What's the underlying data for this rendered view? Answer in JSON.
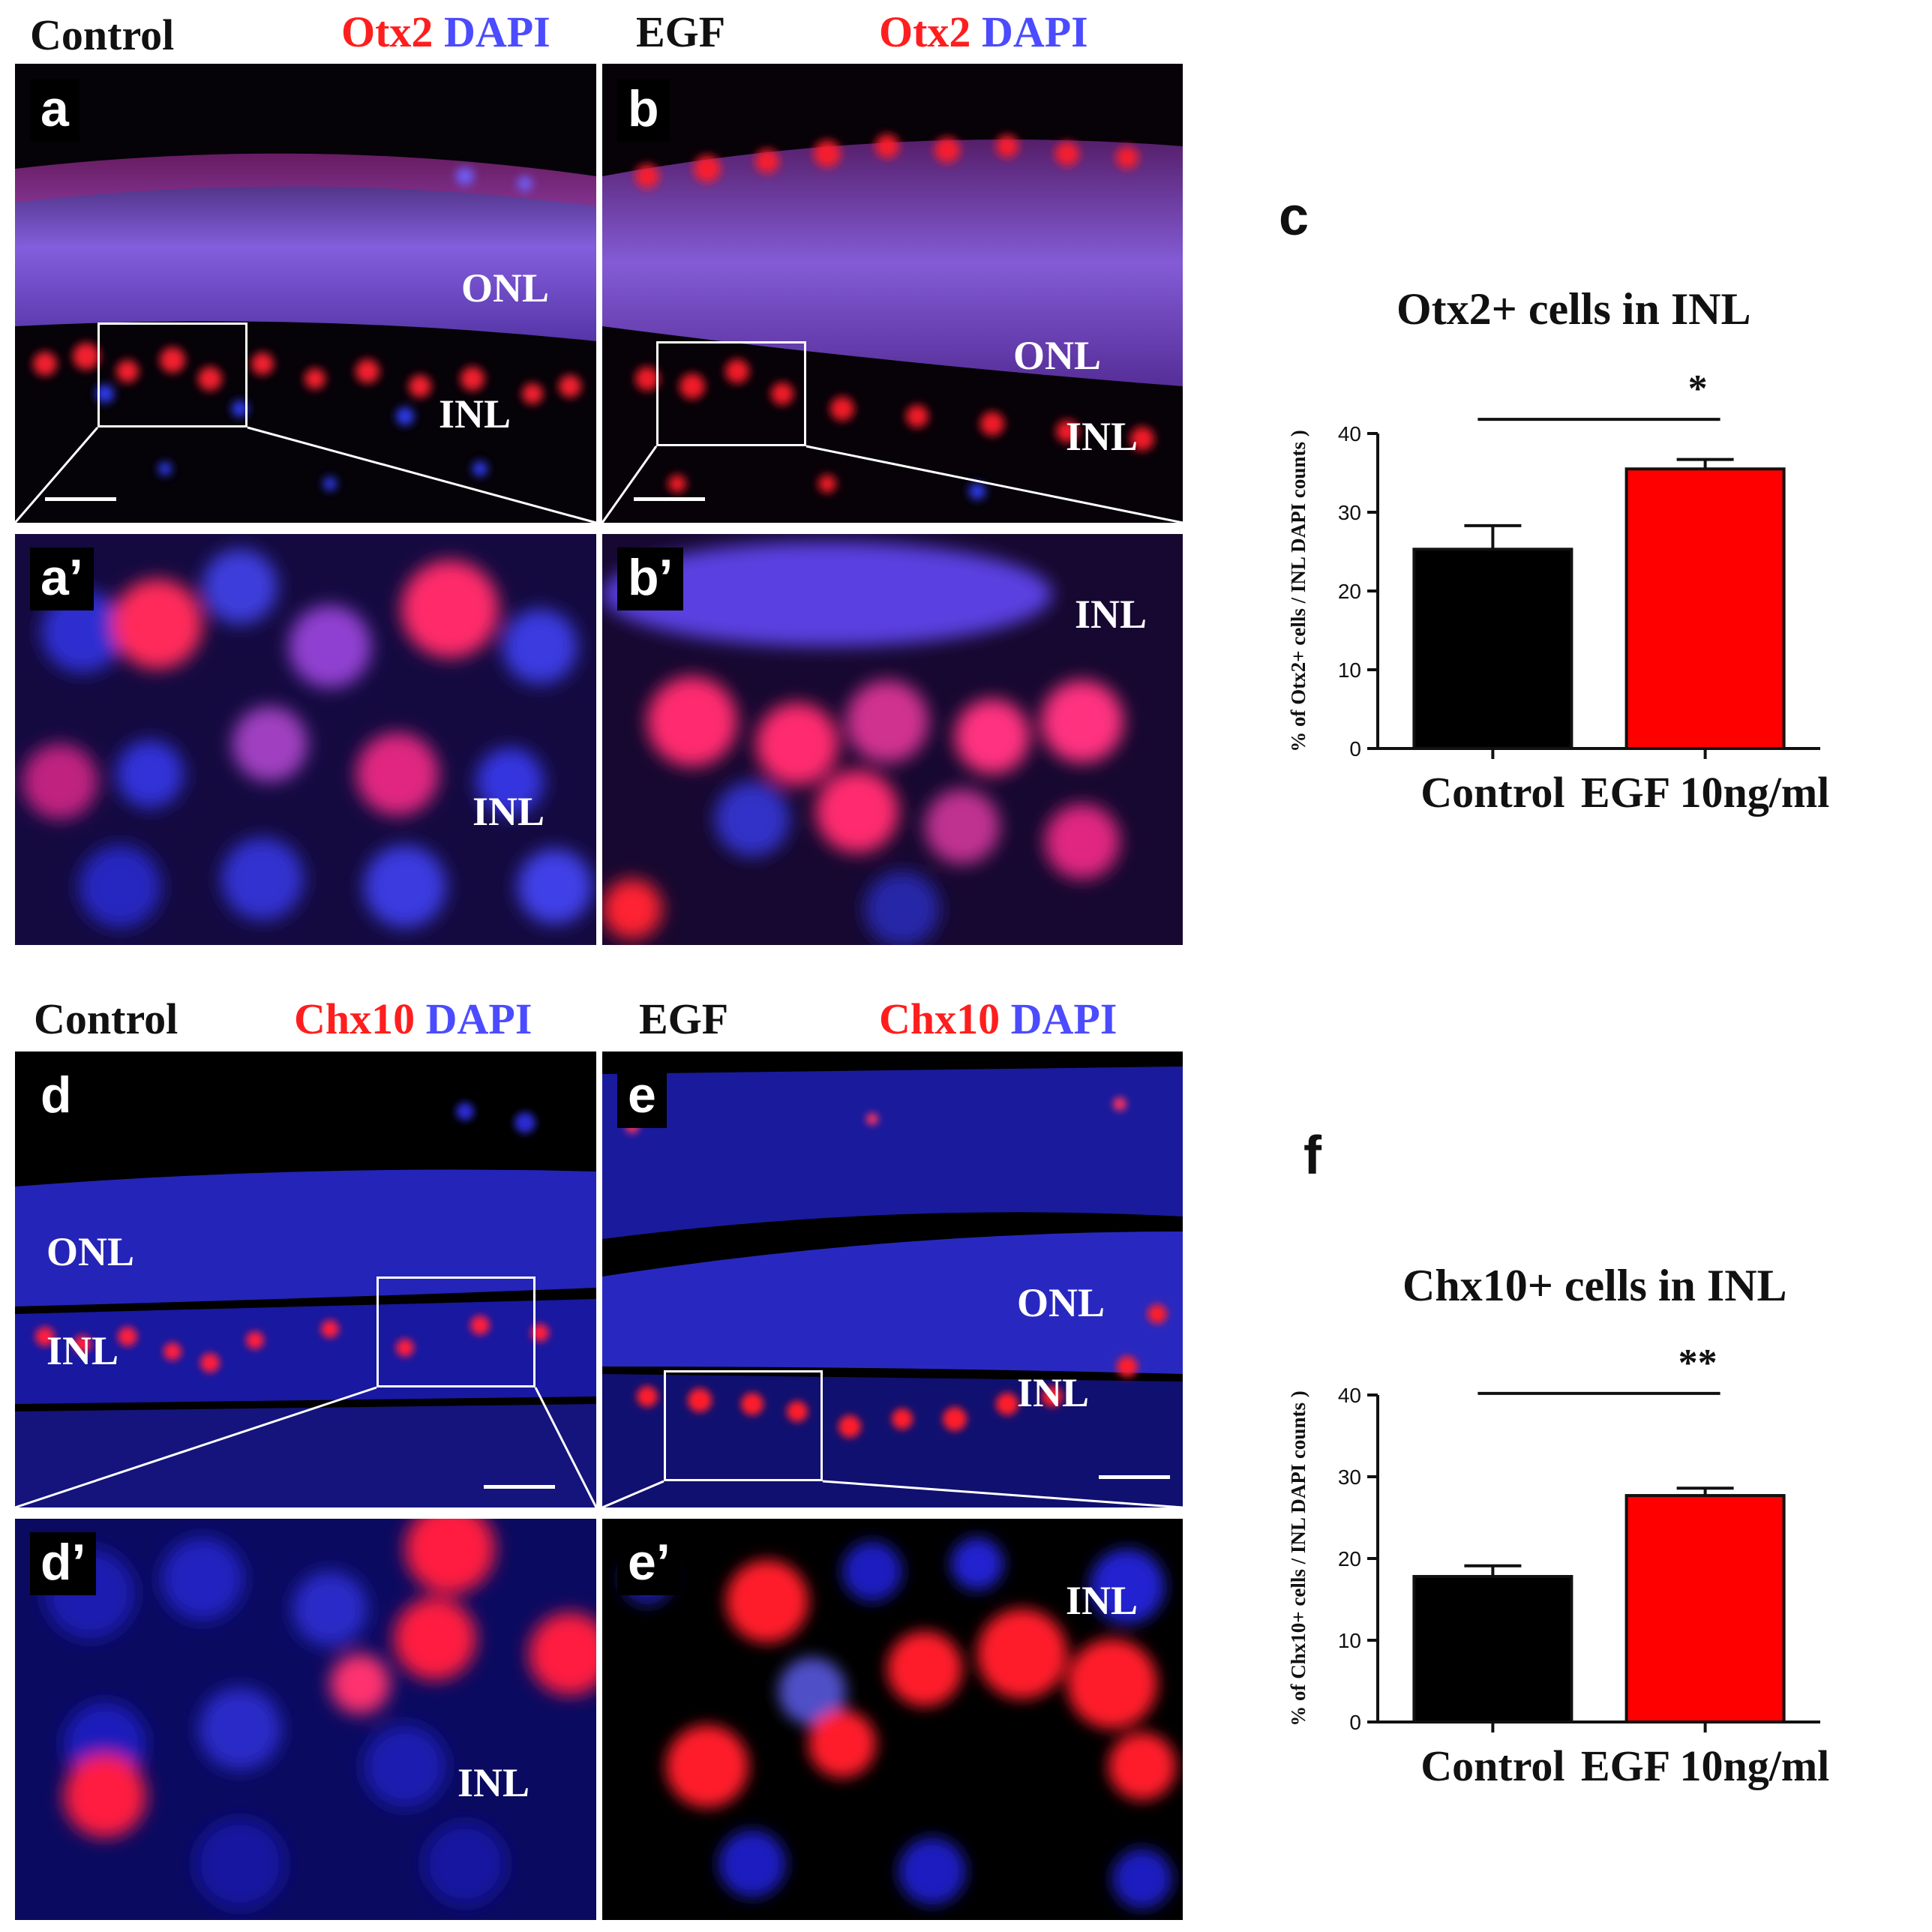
{
  "top": {
    "control_header": {
      "condition": "Control",
      "marker": "Otx2",
      "stain": "DAPI"
    },
    "egf_header": {
      "condition": "EGF",
      "marker": "Otx2",
      "stain": "DAPI"
    },
    "panels": {
      "a": {
        "label": "a",
        "layers": [
          "ONL",
          "INL"
        ]
      },
      "b": {
        "label": "b",
        "layers": [
          "ONL",
          "INL"
        ]
      },
      "a_zoom": {
        "label": "a’",
        "layers": [
          "INL"
        ]
      },
      "b_zoom": {
        "label": "b’",
        "layers": [
          "INL"
        ]
      }
    }
  },
  "bottom": {
    "control_header": {
      "condition": "Control",
      "marker": "Chx10",
      "stain": "DAPI"
    },
    "egf_header": {
      "condition": "EGF",
      "marker": "Chx10",
      "stain": "DAPI"
    },
    "panels": {
      "d": {
        "label": "d",
        "layers": [
          "ONL",
          "INL"
        ]
      },
      "e": {
        "label": "e",
        "layers": [
          "ONL",
          "INL"
        ]
      },
      "d_zoom": {
        "label": "d’",
        "layers": [
          "INL"
        ]
      },
      "e_zoom": {
        "label": "e’",
        "layers": [
          "INL"
        ]
      }
    }
  },
  "colors": {
    "marker_red": "#ff1e1e",
    "dapi_blue": "#4b4bff",
    "control_bar": "#000000",
    "egf_bar": "#ff0000"
  },
  "chart_data": [
    {
      "panel": "c",
      "type": "bar",
      "title": "Otx2+ cells in INL",
      "ylabel": "% of Otx2+ cells / INL DAPI counts )",
      "categories": [
        "Control",
        "EGF 10ng/ml"
      ],
      "values": [
        25.3,
        35.5
      ],
      "errors": [
        3.0,
        1.2
      ],
      "ylim": [
        0,
        40
      ],
      "yticks": [
        "0",
        "10",
        "20",
        "30",
        "40"
      ],
      "significance": "*"
    },
    {
      "panel": "f",
      "type": "bar",
      "title": "Chx10+ cells in INL",
      "ylabel": "% of Chx10+ cells / INL DAPI counts )",
      "categories": [
        "Control",
        "EGF 10ng/ml"
      ],
      "values": [
        17.8,
        27.7
      ],
      "errors": [
        1.3,
        0.9
      ],
      "ylim": [
        0,
        40
      ],
      "yticks": [
        "0",
        "10",
        "20",
        "30",
        "40"
      ],
      "significance": "**"
    }
  ]
}
